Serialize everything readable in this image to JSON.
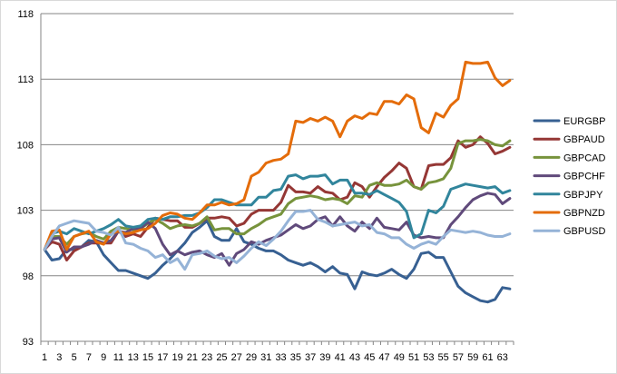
{
  "chart_data": {
    "type": "line",
    "title": "",
    "xlabel": "",
    "ylabel": "",
    "ylim": [
      93,
      118
    ],
    "yticks": [
      93,
      98,
      103,
      108,
      113,
      118
    ],
    "xlim": [
      1,
      64
    ],
    "xticks": [
      1,
      3,
      5,
      7,
      9,
      11,
      13,
      15,
      17,
      19,
      21,
      23,
      25,
      27,
      29,
      31,
      33,
      35,
      37,
      39,
      41,
      43,
      45,
      47,
      49,
      51,
      53,
      55,
      57,
      59,
      61,
      63
    ],
    "grid": "horizontal",
    "legend": "right",
    "series": [
      {
        "name": "EURGBP",
        "color": "#376092",
        "x": [
          1,
          2,
          3,
          4,
          5,
          6,
          7,
          8,
          9,
          10,
          11,
          12,
          13,
          14,
          15,
          16,
          17,
          18,
          19,
          20,
          21,
          22,
          23,
          24,
          25,
          26,
          27,
          28,
          29,
          30,
          31,
          32,
          33,
          34,
          35,
          36,
          37,
          38,
          39,
          40,
          41,
          42,
          43,
          44,
          45,
          46,
          47,
          48,
          49,
          50,
          51,
          52,
          53,
          54,
          55,
          56,
          57,
          58,
          59,
          60,
          61,
          62,
          63,
          64
        ],
        "values": [
          100.0,
          99.2,
          99.3,
          100.0,
          100.0,
          100.2,
          100.7,
          100.6,
          99.6,
          99.0,
          98.4,
          98.4,
          98.2,
          98.0,
          97.8,
          98.2,
          98.8,
          99.3,
          99.9,
          100.5,
          101.3,
          101.7,
          102.2,
          101.0,
          100.7,
          100.7,
          101.6,
          100.6,
          100.4,
          100.1,
          99.9,
          99.9,
          99.6,
          99.2,
          99.0,
          98.8,
          99.0,
          98.7,
          98.3,
          98.7,
          98.2,
          98.1,
          97.0,
          98.3,
          98.1,
          98.0,
          98.2,
          98.5,
          98.1,
          97.8,
          98.5,
          99.7,
          99.8,
          99.4,
          99.4,
          98.3,
          97.2,
          96.7,
          96.4,
          96.1,
          96.0,
          96.2,
          97.1,
          97.0
        ]
      },
      {
        "name": "GBPAUD",
        "color": "#953735",
        "x": [
          1,
          2,
          3,
          4,
          5,
          6,
          7,
          8,
          9,
          10,
          11,
          12,
          13,
          14,
          15,
          16,
          17,
          18,
          19,
          20,
          21,
          22,
          23,
          24,
          25,
          26,
          27,
          28,
          29,
          30,
          31,
          32,
          33,
          34,
          35,
          36,
          37,
          38,
          39,
          40,
          41,
          42,
          43,
          44,
          45,
          46,
          47,
          48,
          49,
          50,
          51,
          52,
          53,
          54,
          55,
          56,
          57,
          58,
          59,
          60,
          61,
          62,
          63,
          64
        ],
        "values": [
          100.0,
          100.6,
          100.4,
          99.2,
          99.9,
          100.2,
          100.5,
          100.5,
          100.5,
          100.5,
          101.4,
          101.0,
          101.2,
          101.0,
          101.7,
          102.4,
          102.3,
          102.2,
          102.2,
          101.7,
          101.7,
          102.0,
          102.4,
          102.4,
          102.5,
          102.4,
          101.8,
          102.0,
          102.7,
          103.0,
          103.0,
          103.0,
          103.6,
          104.9,
          104.4,
          104.4,
          104.3,
          104.8,
          104.4,
          104.3,
          103.8,
          104.0,
          105.1,
          104.8,
          104.0,
          104.8,
          105.5,
          106.0,
          106.6,
          106.2,
          104.8,
          104.6,
          106.4,
          106.5,
          106.5,
          107.0,
          108.3,
          107.8,
          108.0,
          108.6,
          108.1,
          107.3,
          107.5,
          107.8
        ]
      },
      {
        "name": "GBPCAD",
        "color": "#77933C",
        "x": [
          1,
          2,
          3,
          4,
          5,
          6,
          7,
          8,
          9,
          10,
          11,
          12,
          13,
          14,
          15,
          16,
          17,
          18,
          19,
          20,
          21,
          22,
          23,
          24,
          25,
          26,
          27,
          28,
          29,
          30,
          31,
          32,
          33,
          34,
          35,
          36,
          37,
          38,
          39,
          40,
          41,
          42,
          43,
          44,
          45,
          46,
          47,
          48,
          49,
          50,
          51,
          52,
          53,
          54,
          55,
          56,
          57,
          58,
          59,
          60,
          61,
          62,
          63,
          64
        ],
        "values": [
          100.0,
          101.0,
          101.0,
          100.4,
          101.0,
          101.2,
          101.3,
          101.0,
          100.8,
          101.4,
          101.7,
          101.6,
          101.5,
          101.6,
          102.0,
          102.3,
          102.0,
          101.6,
          101.8,
          101.9,
          101.8,
          102.0,
          102.5,
          101.5,
          101.6,
          101.6,
          101.2,
          101.2,
          101.6,
          101.9,
          102.3,
          102.5,
          102.7,
          103.5,
          103.9,
          104.0,
          104.1,
          104.0,
          103.8,
          103.9,
          103.8,
          103.5,
          104.1,
          104.0,
          104.9,
          105.1,
          104.9,
          104.9,
          105.0,
          105.3,
          104.8,
          104.6,
          105.1,
          105.2,
          105.4,
          106.2,
          108.1,
          108.3,
          108.3,
          108.4,
          108.3,
          108.0,
          107.9,
          108.3
        ]
      },
      {
        "name": "GBPCHF",
        "color": "#604A7B",
        "x": [
          1,
          2,
          3,
          4,
          5,
          6,
          7,
          8,
          9,
          10,
          11,
          12,
          13,
          14,
          15,
          16,
          17,
          18,
          19,
          20,
          21,
          22,
          23,
          24,
          25,
          26,
          27,
          28,
          29,
          30,
          31,
          32,
          33,
          34,
          35,
          36,
          37,
          38,
          39,
          40,
          41,
          42,
          43,
          44,
          45,
          46,
          47,
          48,
          49,
          50,
          51,
          52,
          53,
          54,
          55,
          56,
          57,
          58,
          59,
          60,
          61,
          62,
          63,
          64
        ],
        "values": [
          100.0,
          100.8,
          100.9,
          99.8,
          100.2,
          100.2,
          100.4,
          100.7,
          100.5,
          100.7,
          101.4,
          101.3,
          101.6,
          101.6,
          102.1,
          101.6,
          100.4,
          99.6,
          99.9,
          99.6,
          99.8,
          99.9,
          99.6,
          99.4,
          99.7,
          98.8,
          99.7,
          100.0,
          100.6,
          100.4,
          100.7,
          100.9,
          101.1,
          101.5,
          101.9,
          101.6,
          101.8,
          102.3,
          102.5,
          101.8,
          102.5,
          101.8,
          101.4,
          102.1,
          101.6,
          102.4,
          101.7,
          101.6,
          101.5,
          102.1,
          101.1,
          100.9,
          101.0,
          100.9,
          100.9,
          101.9,
          102.5,
          103.2,
          103.8,
          104.1,
          104.3,
          104.2,
          103.5,
          103.9
        ]
      },
      {
        "name": "GBPJPY",
        "color": "#31859C",
        "x": [
          1,
          2,
          3,
          4,
          5,
          6,
          7,
          8,
          9,
          10,
          11,
          12,
          13,
          14,
          15,
          16,
          17,
          18,
          19,
          20,
          21,
          22,
          23,
          24,
          25,
          26,
          27,
          28,
          29,
          30,
          31,
          32,
          33,
          34,
          35,
          36,
          37,
          38,
          39,
          40,
          41,
          42,
          43,
          44,
          45,
          46,
          47,
          48,
          49,
          50,
          51,
          52,
          53,
          54,
          55,
          56,
          57,
          58,
          59,
          60,
          61,
          62,
          63,
          64
        ],
        "values": [
          100.0,
          101.2,
          101.4,
          101.2,
          101.6,
          101.4,
          101.2,
          101.4,
          101.6,
          101.9,
          102.3,
          101.8,
          101.7,
          101.8,
          102.3,
          102.4,
          102.3,
          102.5,
          102.5,
          102.6,
          102.6,
          102.8,
          103.2,
          103.8,
          103.8,
          103.6,
          103.4,
          103.4,
          103.4,
          104.0,
          104.0,
          104.5,
          104.6,
          105.6,
          105.7,
          105.4,
          105.6,
          105.6,
          105.7,
          105.0,
          105.3,
          105.3,
          104.3,
          104.3,
          104.2,
          104.5,
          104.2,
          103.9,
          103.6,
          102.9,
          100.9,
          101.2,
          103.0,
          102.8,
          103.3,
          104.6,
          104.8,
          105.0,
          104.9,
          104.8,
          104.7,
          104.8,
          104.3,
          104.5
        ]
      },
      {
        "name": "GBPNZD",
        "color": "#E46C0A",
        "x": [
          1,
          2,
          3,
          4,
          5,
          6,
          7,
          8,
          9,
          10,
          11,
          12,
          13,
          14,
          15,
          16,
          17,
          18,
          19,
          20,
          21,
          22,
          23,
          24,
          25,
          26,
          27,
          28,
          29,
          30,
          31,
          32,
          33,
          34,
          35,
          36,
          37,
          38,
          39,
          40,
          41,
          42,
          43,
          44,
          45,
          46,
          47,
          48,
          49,
          50,
          51,
          52,
          53,
          54,
          55,
          56,
          57,
          58,
          59,
          60,
          61,
          62,
          63,
          64
        ],
        "values": [
          100.0,
          101.4,
          101.5,
          100.0,
          101.0,
          101.2,
          101.4,
          100.6,
          100.4,
          101.2,
          101.4,
          101.2,
          101.3,
          101.5,
          101.6,
          102.0,
          102.6,
          102.8,
          102.7,
          102.4,
          102.3,
          102.8,
          103.4,
          103.4,
          103.6,
          103.4,
          103.5,
          103.8,
          105.6,
          105.9,
          106.6,
          106.8,
          106.9,
          107.3,
          109.8,
          109.7,
          110.0,
          109.8,
          110.1,
          109.8,
          108.6,
          109.8,
          110.2,
          110.0,
          110.4,
          110.3,
          111.3,
          111.3,
          111.1,
          111.8,
          111.5,
          109.3,
          108.9,
          110.4,
          110.1,
          111.0,
          111.5,
          114.3,
          114.2,
          114.2,
          114.3,
          113.1,
          112.5,
          112.9
        ]
      },
      {
        "name": "GBPUSD",
        "color": "#95B3D7",
        "x": [
          1,
          2,
          3,
          4,
          5,
          6,
          7,
          8,
          9,
          10,
          11,
          12,
          13,
          14,
          15,
          16,
          17,
          18,
          19,
          20,
          21,
          22,
          23,
          24,
          25,
          26,
          27,
          28,
          29,
          30,
          31,
          32,
          33,
          34,
          35,
          36,
          37,
          38,
          39,
          40,
          41,
          42,
          43,
          44,
          45,
          46,
          47,
          48,
          49,
          50,
          51,
          52,
          53,
          54,
          55,
          56,
          57,
          58,
          59,
          60,
          61,
          62,
          63,
          64
        ],
        "values": [
          100.0,
          101.0,
          101.8,
          102.0,
          102.2,
          102.1,
          102.0,
          101.4,
          101.3,
          101.1,
          101.7,
          100.5,
          100.4,
          100.1,
          99.9,
          99.4,
          99.6,
          99.0,
          99.3,
          98.5,
          99.6,
          99.7,
          99.9,
          99.5,
          99.3,
          99.4,
          99.0,
          99.5,
          100.1,
          100.6,
          100.3,
          100.8,
          101.4,
          102.2,
          102.9,
          102.9,
          103.0,
          102.3,
          102.1,
          101.8,
          101.9,
          102.0,
          102.1,
          101.8,
          101.9,
          101.3,
          101.2,
          100.9,
          100.9,
          100.4,
          100.1,
          100.4,
          100.6,
          100.4,
          101.0,
          101.5,
          101.4,
          101.3,
          101.4,
          101.3,
          101.1,
          101.0,
          101.0,
          101.2
        ]
      }
    ]
  }
}
